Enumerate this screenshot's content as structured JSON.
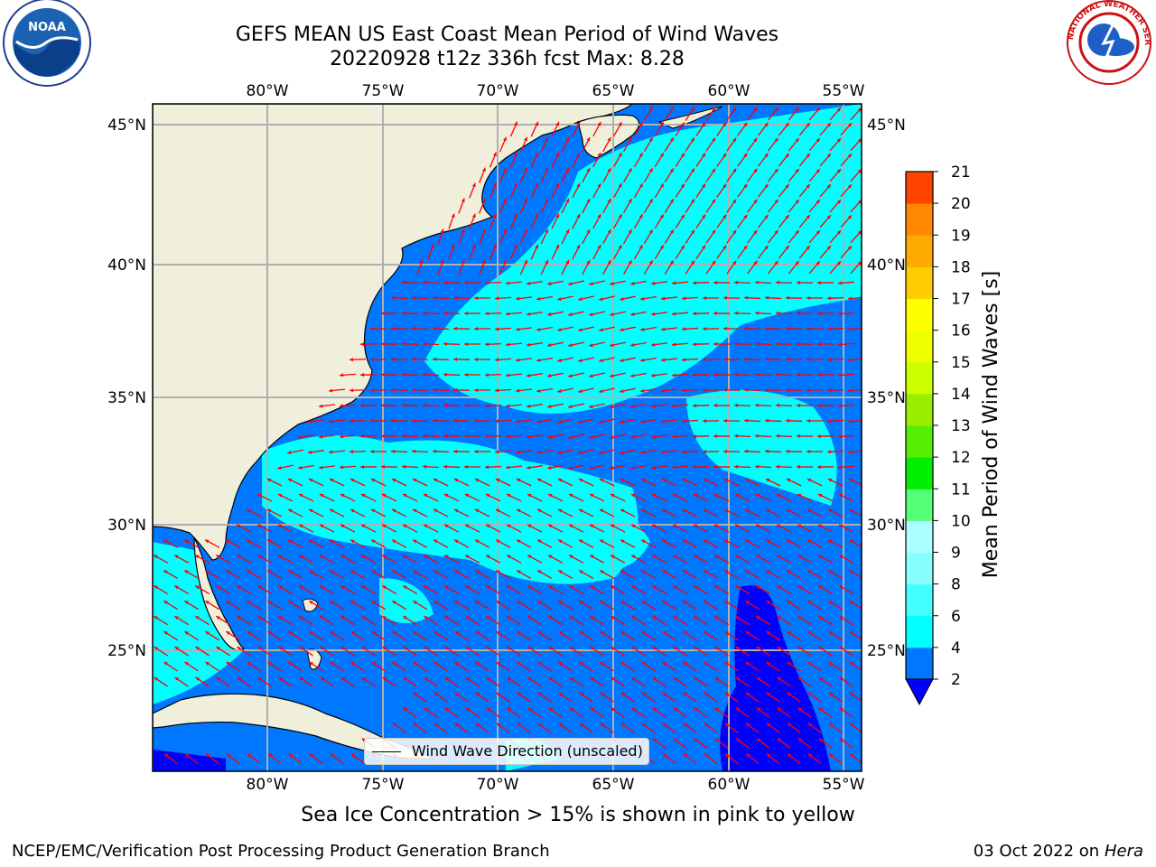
{
  "title": {
    "line1": "GEFS MEAN US East Coast Mean Period of Wind Waves",
    "line2": "20220928 t12z 336h fcst   Max: 8.28"
  },
  "map": {
    "lon_labels": [
      "80°W",
      "75°W",
      "70°W",
      "65°W",
      "60°W",
      "55°W"
    ],
    "lat_labels": [
      "45°N",
      "40°N",
      "35°N",
      "30°N",
      "25°N"
    ],
    "lon_range": [
      -85,
      -55
    ],
    "lat_range": [
      20.5,
      46
    ],
    "arrow_color": "#ff0000",
    "land_color": "#efefdc",
    "grid_color": "#b0b0b0",
    "legend_label": "Wind Wave Direction (unscaled)"
  },
  "colorbar": {
    "label": "Mean Period of Wind Waves [s]",
    "ticks": [
      "2",
      "4",
      "6",
      "8",
      "9",
      "10",
      "11",
      "12",
      "13",
      "14",
      "15",
      "16",
      "17",
      "18",
      "19",
      "20",
      "21"
    ],
    "colors": [
      "#0077ff",
      "#00ffff",
      "#44ffff",
      "#88ffff",
      "#aaffff",
      "#55ff77",
      "#00ee00",
      "#55ee00",
      "#99ee00",
      "#ccff00",
      "#eeff00",
      "#ffff00",
      "#ffcc00",
      "#ffaa00",
      "#ff8800",
      "#ff4400",
      "#ff2200",
      "#ff0000"
    ],
    "under_color": "#0000ff"
  },
  "footer": {
    "ice_note": "Sea Ice Concentration > 15% is shown in pink to yellow",
    "credit": "NCEP/EMC/Verification Post Processing Product Generation Branch",
    "date": "03 Oct 2022 on",
    "machine": "Hera"
  },
  "logos": {
    "noaa_text": "NOAA",
    "nws_text": "NATIONAL WEATHER SERVICE"
  }
}
